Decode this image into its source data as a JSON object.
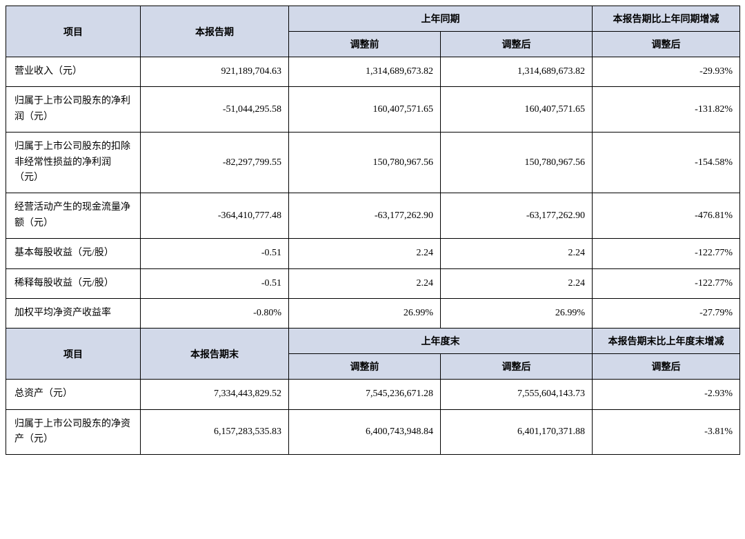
{
  "header1": {
    "item": "项目",
    "current": "本报告期",
    "prior": "上年同期",
    "change": "本报告期比上年同期增减",
    "before_adj": "调整前",
    "after_adj": "调整后",
    "after_adj2": "调整后"
  },
  "header2": {
    "item": "项目",
    "current": "本报告期末",
    "prior": "上年度末",
    "change": "本报告期末比上年度末增减",
    "before_adj": "调整前",
    "after_adj": "调整后",
    "after_adj2": "调整后"
  },
  "rows1": [
    {
      "label": "营业收入（元）",
      "current": "921,189,704.63",
      "before": "1,314,689,673.82",
      "after": "1,314,689,673.82",
      "change": "-29.93%"
    },
    {
      "label": "归属于上市公司股东的净利润（元）",
      "current": "-51,044,295.58",
      "before": "160,407,571.65",
      "after": "160,407,571.65",
      "change": "-131.82%"
    },
    {
      "label": "归属于上市公司股东的扣除非经常性损益的净利润（元）",
      "current": "-82,297,799.55",
      "before": "150,780,967.56",
      "after": "150,780,967.56",
      "change": "-154.58%"
    },
    {
      "label": "经营活动产生的现金流量净额（元）",
      "current": "-364,410,777.48",
      "before": "-63,177,262.90",
      "after": "-63,177,262.90",
      "change": "-476.81%"
    },
    {
      "label": "基本每股收益（元/股）",
      "current": "-0.51",
      "before": "2.24",
      "after": "2.24",
      "change": "-122.77%"
    },
    {
      "label": "稀释每股收益（元/股）",
      "current": "-0.51",
      "before": "2.24",
      "after": "2.24",
      "change": "-122.77%"
    },
    {
      "label": "加权平均净资产收益率",
      "current": "-0.80%",
      "before": "26.99%",
      "after": "26.99%",
      "change": "-27.79%"
    }
  ],
  "rows2": [
    {
      "label": "总资产（元）",
      "current": "7,334,443,829.52",
      "before": "7,545,236,671.28",
      "after": "7,555,604,143.73",
      "change": "-2.93%"
    },
    {
      "label": "归属于上市公司股东的净资产（元）",
      "current": "6,157,283,535.83",
      "before": "6,400,743,948.84",
      "after": "6,401,170,371.88",
      "change": "-3.81%"
    }
  ]
}
